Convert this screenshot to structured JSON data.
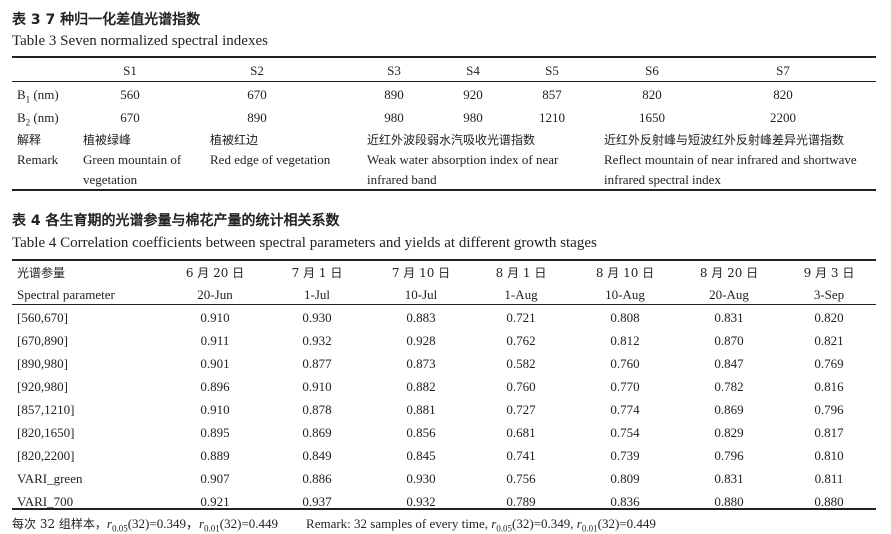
{
  "table3": {
    "caption_cn": "表 3   7 种归一化差值光谱指数",
    "caption_en": "Table 3    Seven normalized spectral indexes",
    "headers": [
      "S1",
      "S2",
      "S3",
      "S4",
      "S5",
      "S6",
      "S7"
    ],
    "b1_label": "B",
    "b1_sub": "1",
    "b1_unit": " (nm)",
    "b2_label": "B",
    "b2_sub": "2",
    "b2_unit": " (nm)",
    "b1_values": [
      "560",
      "670",
      "890",
      "920",
      "857",
      "820",
      "820"
    ],
    "b2_values": [
      "670",
      "890",
      "980",
      "980",
      "1210",
      "1650",
      "2200"
    ],
    "remark_label_cn": "解释",
    "remark_label_en": "Remark",
    "remarks": [
      {
        "cn": "植被绿峰",
        "en": "Green mountain of vegetation"
      },
      {
        "cn": "植被红边",
        "en": "Red edge of vegetation"
      },
      {
        "cn": "近红外波段弱水汽吸收光谱指数",
        "en": "Weak water absorption index of near infrared band"
      },
      {
        "cn": "近红外反射峰与短波红外反射峰差异光谱指数",
        "en": "Reflect mountain of near infrared and shortwave infrared spectral index"
      }
    ]
  },
  "table4": {
    "caption_cn": "表 4   各生育期的光谱参量与棉花产量的统计相关系数",
    "caption_en": "Table 4    Correlation coefficients between spectral parameters and yields at different growth stages",
    "header_cn": [
      "光谱参量",
      "6 月 20 日",
      "7 月 1 日",
      "7 月 10 日",
      "8 月 1 日",
      "8 月 10 日",
      "8 月 20 日",
      "9 月 3 日"
    ],
    "header_en": [
      "Spectral parameter",
      "20-Jun",
      "1-Jul",
      "10-Jul",
      "1-Aug",
      "10-Aug",
      "20-Aug",
      "3-Sep"
    ],
    "rows": [
      [
        "[560,670]",
        "0.910",
        "0.930",
        "0.883",
        "0.721",
        "0.808",
        "0.831",
        "0.820"
      ],
      [
        "[670,890]",
        "0.911",
        "0.932",
        "0.928",
        "0.762",
        "0.812",
        "0.870",
        "0.821"
      ],
      [
        "[890,980]",
        "0.901",
        "0.877",
        "0.873",
        "0.582",
        "0.760",
        "0.847",
        "0.769"
      ],
      [
        "[920,980]",
        "0.896",
        "0.910",
        "0.882",
        "0.760",
        "0.770",
        "0.782",
        "0.816"
      ],
      [
        "[857,1210]",
        "0.910",
        "0.878",
        "0.881",
        "0.727",
        "0.774",
        "0.869",
        "0.796"
      ],
      [
        "[820,1650]",
        "0.895",
        "0.869",
        "0.856",
        "0.681",
        "0.754",
        "0.829",
        "0.817"
      ],
      [
        "[820,2200]",
        "0.889",
        "0.849",
        "0.845",
        "0.741",
        "0.739",
        "0.796",
        "0.810"
      ],
      [
        "VARI_green",
        "0.907",
        "0.886",
        "0.930",
        "0.756",
        "0.809",
        "0.831",
        "0.811"
      ],
      [
        "VARI_700",
        "0.921",
        "0.937",
        "0.932",
        "0.789",
        "0.836",
        "0.880",
        "0.880"
      ]
    ]
  },
  "footnote": {
    "cn_prefix": "每次 32 组样本，",
    "r": "r",
    "sub1": "0.05",
    "val1": "(32)=0.349，",
    "sub2": "0.01",
    "val2": "(32)=0.449",
    "en_prefix": "Remark: 32 samples of every time, ",
    "val1_en": "(32)=0.349, ",
    "val2_en": "(32)=0.449"
  }
}
